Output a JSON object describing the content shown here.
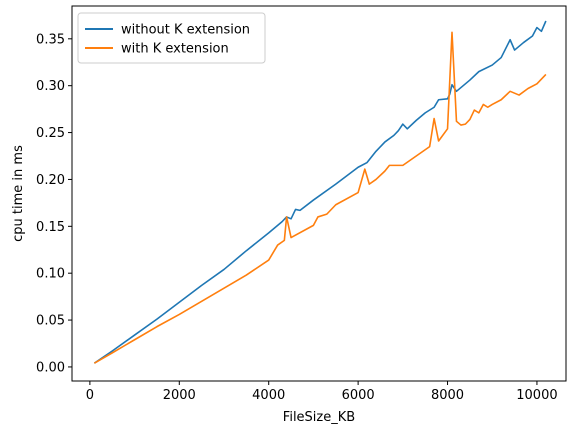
{
  "chart_data": {
    "type": "line",
    "xlabel": "FileSize_KB",
    "ylabel": "cpu time in ms",
    "xlim": [
      -400,
      10650
    ],
    "ylim": [
      -0.015,
      0.385
    ],
    "xticks": [
      0,
      2000,
      4000,
      6000,
      8000,
      10000
    ],
    "xtick_labels": [
      "0",
      "2000",
      "4000",
      "6000",
      "8000",
      "10000"
    ],
    "yticks": [
      0.0,
      0.05,
      0.1,
      0.15,
      0.2,
      0.25,
      0.3,
      0.35
    ],
    "ytick_labels": [
      "0.00",
      "0.05",
      "0.10",
      "0.15",
      "0.20",
      "0.25",
      "0.30",
      "0.35"
    ],
    "grid": false,
    "legend_position": "top-left",
    "series": [
      {
        "name": "without K extension",
        "color": "#1f77b4",
        "x": [
          100,
          500,
          1000,
          1500,
          2000,
          2500,
          3000,
          3500,
          4000,
          4300,
          4400,
          4500,
          4600,
          4700,
          5000,
          5500,
          6000,
          6200,
          6400,
          6600,
          6800,
          6900,
          7000,
          7100,
          7300,
          7500,
          7700,
          7800,
          8000,
          8050,
          8100,
          8200,
          8300,
          8500,
          8700,
          9000,
          9200,
          9400,
          9500,
          9700,
          9900,
          10000,
          10100,
          10200
        ],
        "y": [
          0.004,
          0.017,
          0.034,
          0.051,
          0.069,
          0.087,
          0.104,
          0.124,
          0.143,
          0.155,
          0.16,
          0.158,
          0.168,
          0.167,
          0.178,
          0.195,
          0.213,
          0.218,
          0.23,
          0.24,
          0.247,
          0.252,
          0.259,
          0.254,
          0.263,
          0.271,
          0.277,
          0.285,
          0.286,
          0.291,
          0.301,
          0.294,
          0.298,
          0.306,
          0.315,
          0.322,
          0.33,
          0.349,
          0.338,
          0.346,
          0.353,
          0.362,
          0.358,
          0.369
        ]
      },
      {
        "name": "with K extension",
        "color": "#ff7f0e",
        "x": [
          100,
          500,
          1000,
          1500,
          2000,
          2500,
          3000,
          3500,
          4000,
          4200,
          4350,
          4400,
          4500,
          5000,
          5100,
          5300,
          5500,
          6000,
          6150,
          6250,
          6400,
          6600,
          6700,
          7000,
          7300,
          7600,
          7700,
          7800,
          8000,
          8100,
          8200,
          8300,
          8400,
          8500,
          8600,
          8700,
          8800,
          8900,
          9000,
          9200,
          9400,
          9600,
          9800,
          10000,
          10200
        ],
        "y": [
          0.004,
          0.015,
          0.029,
          0.043,
          0.056,
          0.07,
          0.084,
          0.098,
          0.114,
          0.13,
          0.135,
          0.16,
          0.138,
          0.151,
          0.16,
          0.163,
          0.173,
          0.186,
          0.211,
          0.195,
          0.2,
          0.209,
          0.215,
          0.215,
          0.225,
          0.235,
          0.265,
          0.241,
          0.254,
          0.357,
          0.262,
          0.258,
          0.259,
          0.264,
          0.274,
          0.271,
          0.28,
          0.277,
          0.28,
          0.285,
          0.294,
          0.29,
          0.297,
          0.302,
          0.312
        ]
      }
    ]
  }
}
